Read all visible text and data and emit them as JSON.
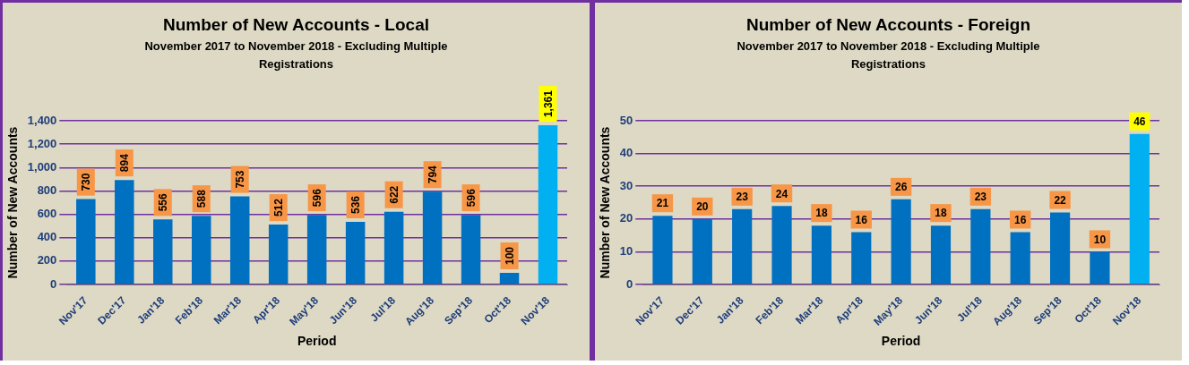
{
  "chart_data": [
    {
      "type": "bar",
      "title": "Number of New Accounts - Local",
      "subtitle": "November 2017 to November 2018 - Excluding Multiple Registrations",
      "xlabel": "Period",
      "ylabel": "Number of New Accounts",
      "categories": [
        "Nov'17",
        "Dec'17",
        "Jan'18",
        "Feb'18",
        "Mar'18",
        "Apr'18",
        "May'18",
        "Jun'18",
        "Jul'18",
        "Aug'18",
        "Sep'18",
        "Oct'18",
        "Nov'18"
      ],
      "values": [
        730,
        894,
        556,
        588,
        753,
        512,
        596,
        536,
        622,
        794,
        596,
        100,
        1361
      ],
      "value_labels": [
        "730",
        "894",
        "556",
        "588",
        "753",
        "512",
        "596",
        "536",
        "622",
        "794",
        "596",
        "100",
        "1,361"
      ],
      "colors": [
        "#0070c0",
        "#0070c0",
        "#0070c0",
        "#0070c0",
        "#0070c0",
        "#0070c0",
        "#0070c0",
        "#0070c0",
        "#0070c0",
        "#0070c0",
        "#0070c0",
        "#0070c0",
        "#00b0f0"
      ],
      "ylim": [
        0,
        1400
      ],
      "yticks": [
        0,
        {
          "value": 200,
          "label": "200"
        },
        {
          "value": 400,
          "label": "400"
        },
        {
          "value": 600,
          "label": "600"
        },
        {
          "value": 800,
          "label": "800"
        },
        {
          "value": 1000,
          "label": "1,000"
        },
        {
          "value": 1200,
          "label": "1,200"
        },
        {
          "value": 1400,
          "label": "1,400"
        }
      ],
      "grid": "y",
      "legend": false
    },
    {
      "type": "bar",
      "title": "Number of New Accounts - Foreign",
      "subtitle": "November 2017 to November 2018 - Excluding Multiple Registrations",
      "xlabel": "Period",
      "ylabel": "Number of New Accounts",
      "categories": [
        "Nov'17",
        "Dec'17",
        "Jan'18",
        "Feb'18",
        "Mar'18",
        "Apr'18",
        "May'18",
        "Jun'18",
        "Jul'18",
        "Aug'18",
        "Sep'18",
        "Oct'18",
        "Nov'18"
      ],
      "values": [
        21,
        20,
        23,
        24,
        18,
        16,
        26,
        18,
        23,
        16,
        22,
        10,
        46
      ],
      "data_labels": true,
      "colors": [
        "#0070c0",
        "#0070c0",
        "#0070c0",
        "#0070c0",
        "#0070c0",
        "#0070c0",
        "#0070c0",
        "#0070c0",
        "#0070c0",
        "#0070c0",
        "#0070c0",
        "#0070c0",
        "#00b0f0"
      ],
      "ylim": [
        0,
        50
      ],
      "yticks": [
        0,
        10,
        20,
        30,
        40,
        50
      ],
      "grid": "y",
      "legend": false
    }
  ]
}
